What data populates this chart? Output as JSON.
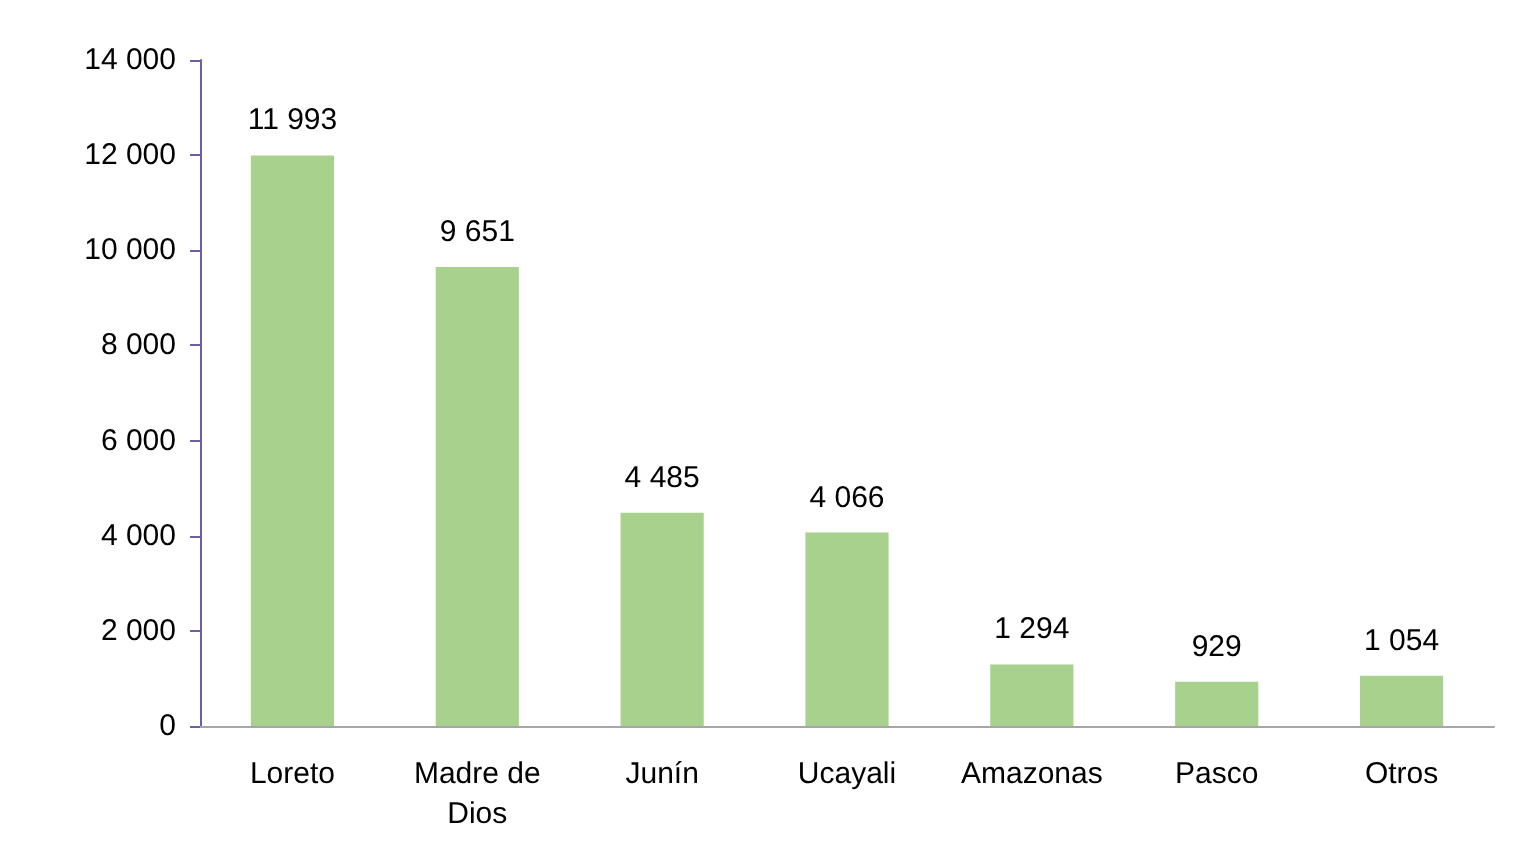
{
  "chart_data": {
    "type": "bar",
    "categories": [
      "Loreto",
      "Madre de\nDios",
      "Junín",
      "Ucayali",
      "Amazonas",
      "Pasco",
      "Otros"
    ],
    "values": [
      11993,
      9651,
      4485,
      4066,
      1294,
      929,
      1054
    ],
    "color": "#a9d18e",
    "value_labels": [
      "11 993",
      "9 651",
      "4 485",
      "4 066",
      "1 294",
      "929",
      "1 054"
    ],
    "ylim": [
      0,
      14000
    ],
    "yticks": [
      {
        "value": 0,
        "label": "0"
      },
      {
        "value": 2000,
        "label": "2 000"
      },
      {
        "value": 4000,
        "label": "4 000"
      },
      {
        "value": 6000,
        "label": "6 000"
      },
      {
        "value": 8000,
        "label": "8 000"
      },
      {
        "value": 10000,
        "label": "10 000"
      },
      {
        "value": 12000,
        "label": "12 000"
      },
      {
        "value": 14000,
        "label": "14 000"
      }
    ],
    "grid": false
  }
}
